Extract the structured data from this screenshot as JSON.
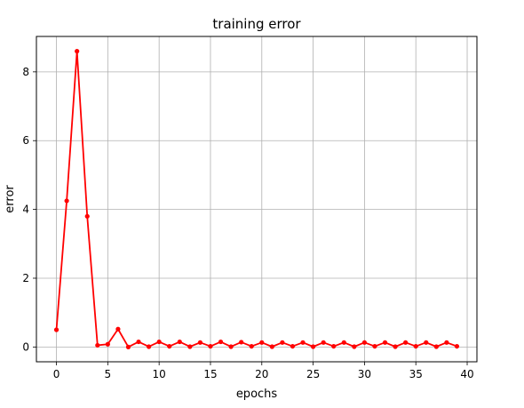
{
  "chart_data": {
    "type": "line",
    "title": "training error",
    "xlabel": "epochs",
    "ylabel": "error",
    "xlim": [
      -1.95,
      40.95
    ],
    "ylim": [
      -0.43,
      9.03
    ],
    "xticks": [
      0,
      5,
      10,
      15,
      20,
      25,
      30,
      35,
      40
    ],
    "yticks": [
      0,
      2,
      4,
      6,
      8
    ],
    "grid": true,
    "series": [
      {
        "color": "#ff0000",
        "marker": "circle",
        "x": [
          0,
          1,
          2,
          3,
          4,
          5,
          6,
          7,
          8,
          9,
          10,
          11,
          12,
          13,
          14,
          15,
          16,
          17,
          18,
          19,
          20,
          21,
          22,
          23,
          24,
          25,
          26,
          27,
          28,
          29,
          30,
          31,
          32,
          33,
          34,
          35,
          36,
          37,
          38,
          39
        ],
        "y": [
          0.5,
          4.25,
          8.6,
          3.8,
          0.05,
          0.08,
          0.52,
          0.0,
          0.15,
          0.01,
          0.15,
          0.02,
          0.15,
          0.01,
          0.13,
          0.02,
          0.15,
          0.01,
          0.14,
          0.02,
          0.13,
          0.01,
          0.13,
          0.02,
          0.13,
          0.01,
          0.13,
          0.02,
          0.13,
          0.01,
          0.13,
          0.02,
          0.13,
          0.01,
          0.13,
          0.02,
          0.13,
          0.01,
          0.13,
          0.02
        ]
      }
    ]
  }
}
